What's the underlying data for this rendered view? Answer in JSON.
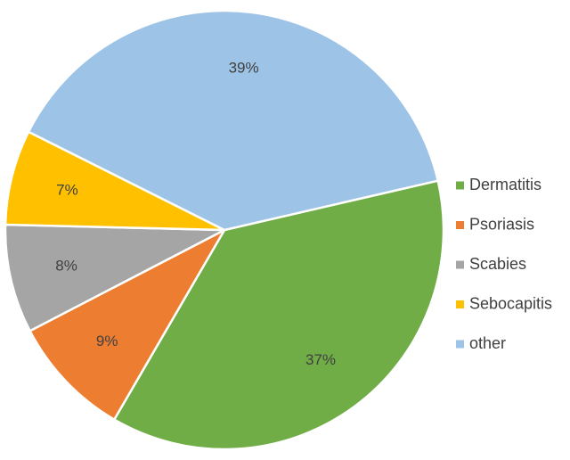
{
  "chart_data": {
    "type": "pie",
    "categories": [
      "Dermatitis",
      "Psoriasis",
      "Scabies",
      "Sebocapitis",
      "other"
    ],
    "values": [
      37,
      9,
      8,
      7,
      39
    ],
    "data_labels": [
      "37%",
      "9%",
      "8%",
      "7%",
      "39%"
    ],
    "colors": [
      "#70ad47",
      "#ed7d31",
      "#a5a5a5",
      "#ffc000",
      "#9dc3e6"
    ],
    "legend_position": "right"
  }
}
